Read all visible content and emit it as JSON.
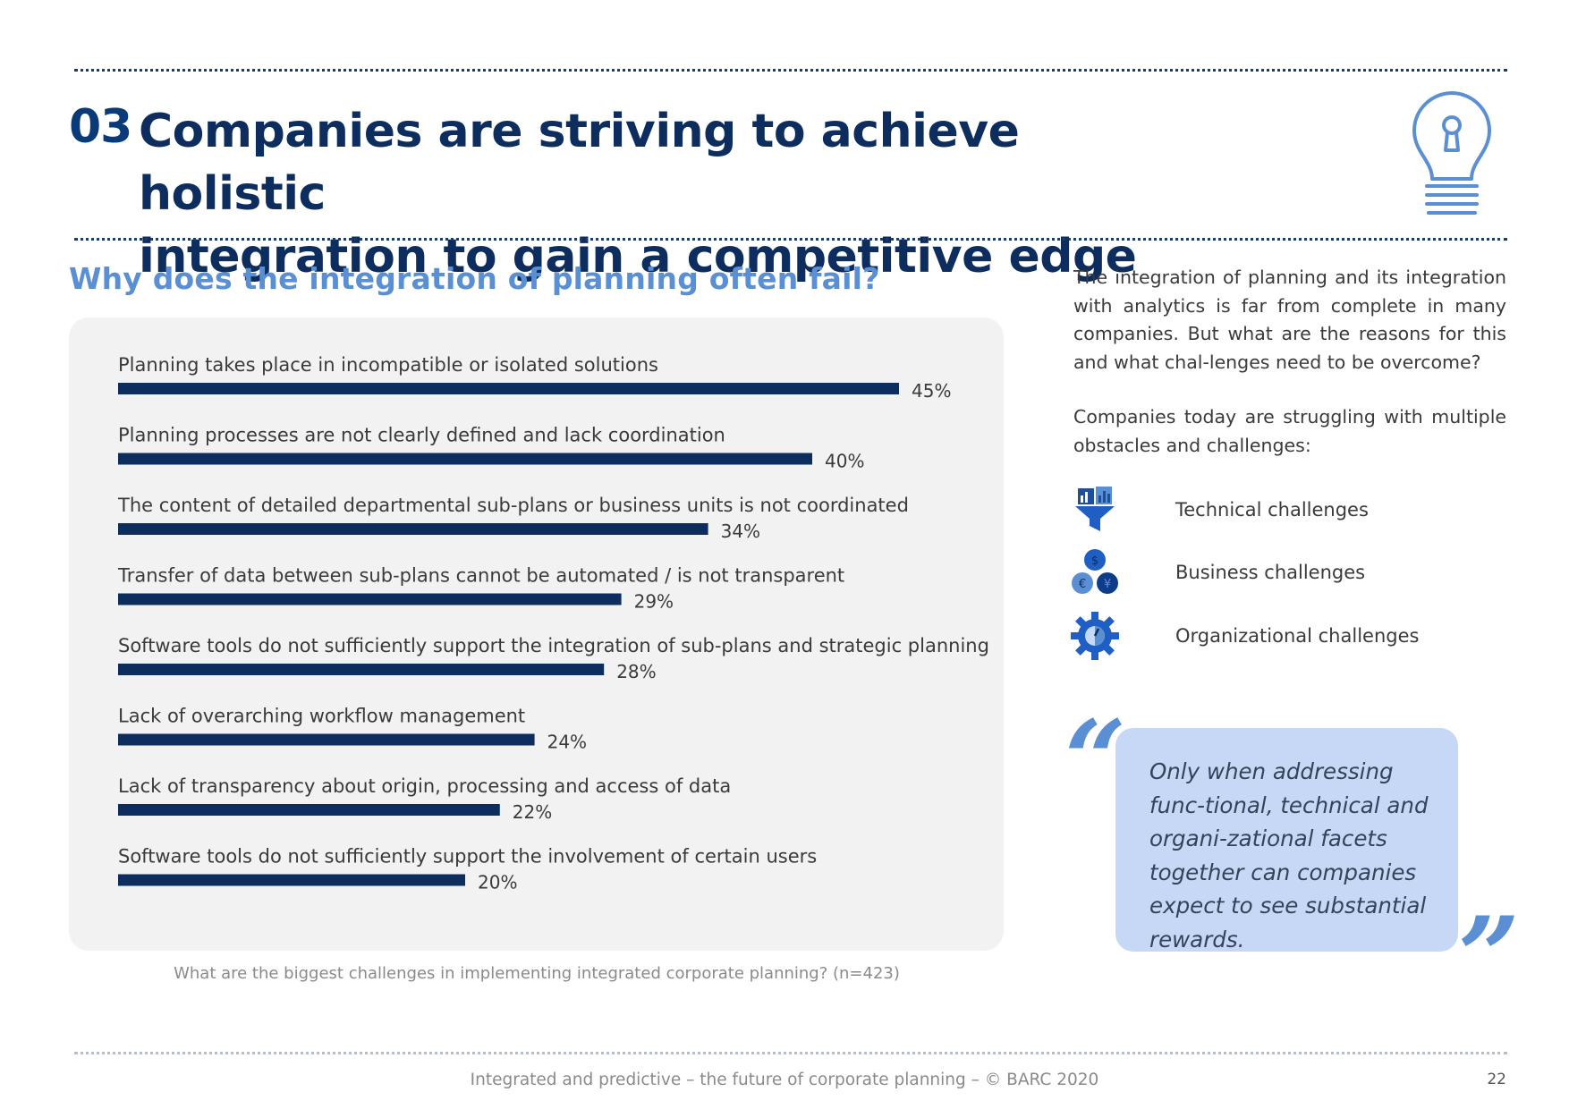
{
  "header": {
    "section_number": "03",
    "title_line1": "Companies are striving to achieve holistic",
    "title_line2": "integration to gain a competitive edge",
    "icon": "lightbulb-keyhole-icon"
  },
  "subtitle": "Why does the integration of planning often fail?",
  "chart_data": {
    "type": "bar",
    "orientation": "horizontal",
    "categories": [
      "Planning takes place in incompatible or isolated solutions",
      "Planning processes are not clearly defined and lack coordination",
      "The content of detailed departmental sub-plans or business units is not coordinated",
      "Transfer of data between sub-plans cannot be automated / is not transparent",
      "Software tools do not sufficiently support the integration of sub-plans and strategic planning",
      "Lack of overarching workflow management",
      "Lack of transparency about origin, processing and access of data",
      "Software tools do not sufficiently support the involvement of certain users"
    ],
    "values": [
      45,
      40,
      34,
      29,
      28,
      24,
      22,
      20
    ],
    "value_labels": [
      "45%",
      "40%",
      "34%",
      "29%",
      "28%",
      "24%",
      "22%",
      "20%"
    ],
    "unit": "%",
    "bar_color": "#0d2d5e",
    "grid": false,
    "caption": "What are the biggest challenges in implementing integrated corporate planning? (n=423)"
  },
  "side": {
    "paragraph1": "The integration of planning and its integration with analytics is far from complete in many companies. But what are the reasons for this and what chal-lenges need to be overcome?",
    "paragraph2": "Companies today are struggling with multiple obstacles and challenges:",
    "challenges": [
      {
        "label": "Technical challenges",
        "icon": "funnel-data-icon"
      },
      {
        "label": "Business challenges",
        "icon": "currency-coins-icon"
      },
      {
        "label": "Organizational challenges",
        "icon": "gear-clock-icon"
      }
    ]
  },
  "quote": {
    "text": "Only when addressing func-tional, technical and organi-zational facets together can companies expect to see substantial rewards.",
    "open_mark": "“",
    "close_mark": "”"
  },
  "footer": {
    "text": "Integrated and predictive – the future of corporate planning  – © BARC 2020",
    "page_number": "22"
  },
  "colors": {
    "navy": "#0d2d5e",
    "accent_blue": "#5b8fd4",
    "panel_gray": "#f2f2f2",
    "quote_bg": "#c6d8f5"
  }
}
